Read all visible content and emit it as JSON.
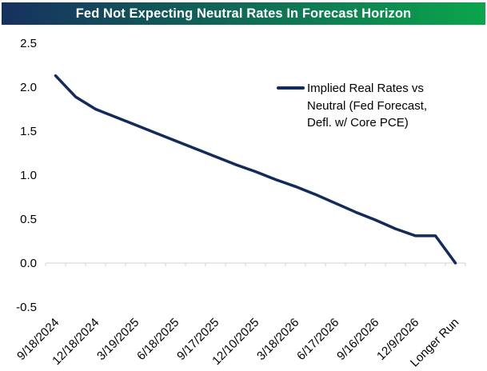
{
  "title_bar": {
    "text": "Fed Not Expecting Neutral Rates In Forecast Horizon",
    "bg_left": "#16315f",
    "bg_right": "#0aa54c",
    "text_color": "#ffffff"
  },
  "legend": {
    "marker_color": "#122a5c",
    "lines": [
      "Implied Real Rates vs",
      "Neutral (Fed Forecast,",
      "Defl. w/ Core PCE)"
    ]
  },
  "chart_data": {
    "type": "line",
    "title": "Fed Not Expecting Neutral Rates In Forecast Horizon",
    "legend_label": "Implied Real Rates vs Neutral (Fed Forecast, Defl. w/ Core PCE)",
    "legend_position": "inside-top-right",
    "grid": false,
    "axis_color": "#d9d9d9",
    "text_color": "#000000",
    "y_axis": {
      "min": -0.5,
      "max": 2.5,
      "step": 0.5,
      "tick_labels": [
        "2.5",
        "2.0",
        "1.5",
        "1.0",
        "0.5",
        "0.0",
        "-0.5"
      ]
    },
    "x_tick_labels": [
      "9/18/2024",
      "12/18/2024",
      "3/19/2025",
      "6/18/2025",
      "9/17/2025",
      "12/10/2025",
      "3/18/2026",
      "6/17/2026",
      "9/16/2026",
      "12/9/2026",
      "Longer Run"
    ],
    "series": [
      {
        "name": "Implied Real Rates vs Neutral (Fed Forecast, Defl. w/ Core PCE)",
        "color": "#122a5c",
        "points": [
          {
            "label": "9/18/2024",
            "value": 2.13
          },
          {
            "label": "",
            "value": 1.89
          },
          {
            "label": "12/18/2024",
            "value": 1.75
          },
          {
            "label": "",
            "value": 1.66
          },
          {
            "label": "3/19/2025",
            "value": 1.57
          },
          {
            "label": "",
            "value": 1.48
          },
          {
            "label": "6/18/2025",
            "value": 1.39
          },
          {
            "label": "",
            "value": 1.3
          },
          {
            "label": "9/17/2025",
            "value": 1.21
          },
          {
            "label": "",
            "value": 1.12
          },
          {
            "label": "12/10/2025",
            "value": 1.04
          },
          {
            "label": "",
            "value": 0.95
          },
          {
            "label": "3/18/2026",
            "value": 0.87
          },
          {
            "label": "",
            "value": 0.78
          },
          {
            "label": "6/17/2026",
            "value": 0.68
          },
          {
            "label": "",
            "value": 0.58
          },
          {
            "label": "9/16/2026",
            "value": 0.49
          },
          {
            "label": "",
            "value": 0.39
          },
          {
            "label": "12/9/2026",
            "value": 0.31
          },
          {
            "label": "",
            "value": 0.31
          },
          {
            "label": "Longer Run",
            "value": 0.0
          }
        ]
      }
    ]
  }
}
